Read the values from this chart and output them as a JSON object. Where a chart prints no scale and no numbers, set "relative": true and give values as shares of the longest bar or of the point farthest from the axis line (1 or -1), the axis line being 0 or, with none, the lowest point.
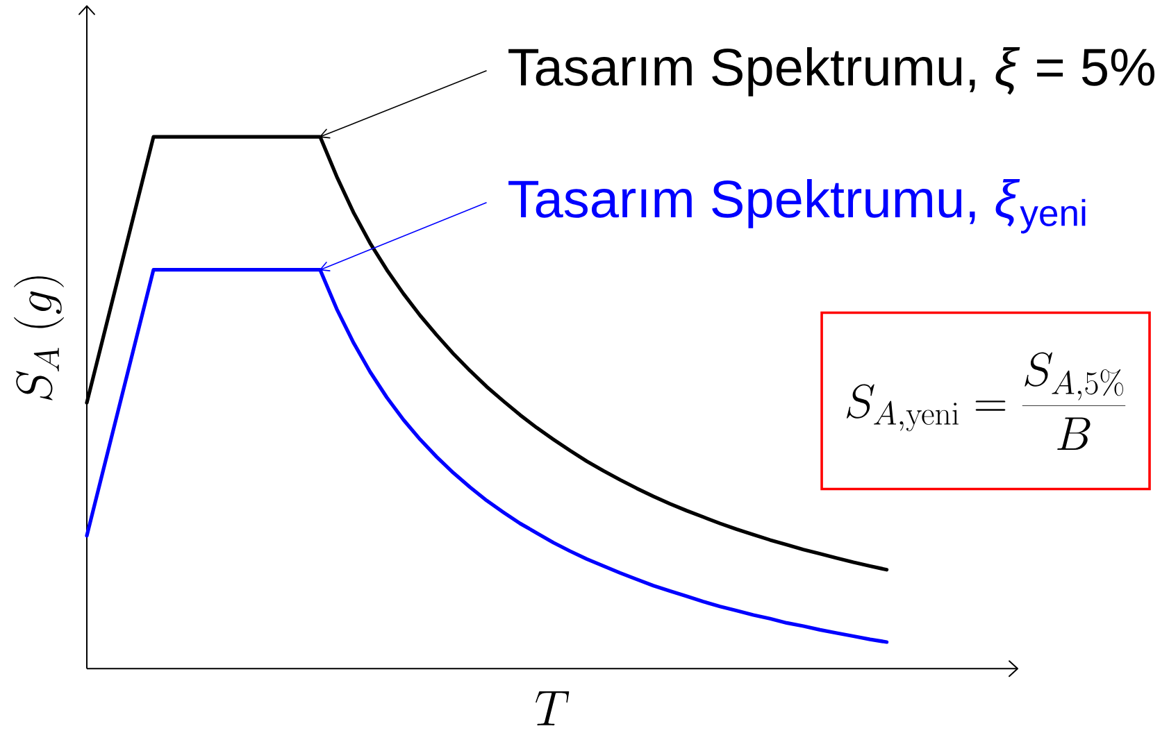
{
  "chart_data": {
    "type": "line",
    "relative": true,
    "legend": "top right",
    "xlabel": "T",
    "ylabel": "S_A\\ (g)",
    "categories": [
      null,
      null,
      null,
      null,
      null,
      null,
      null,
      null,
      null,
      null,
      null,
      null,
      null,
      null,
      null,
      null,
      null,
      null,
      null,
      null,
      null,
      null,
      null,
      null,
      null,
      null,
      null,
      null,
      null,
      null,
      null,
      null,
      null,
      null,
      null,
      null,
      null,
      null,
      null,
      null,
      null,
      null,
      null,
      null,
      null,
      null,
      null,
      null,
      null
    ],
    "series": [
      {
        "name": "Tasarım Spektrumu, *ξ* = 5%",
        "color": "#000000",
        "values": [
          0.5,
          0.625,
          0.75,
          0.875,
          1,
          1,
          1,
          1,
          1,
          1,
          1,
          1,
          1,
          1,
          1,
          0.925,
          0.858,
          0.8,
          0.75,
          0.705,
          0.664,
          0.627,
          0.592,
          0.56,
          0.53,
          0.503,
          0.477,
          0.453,
          0.431,
          0.41,
          0.39,
          0.372,
          0.355,
          0.339,
          0.324,
          0.31,
          0.297,
          0.285,
          0.273,
          0.262,
          0.252,
          0.242,
          0.233,
          0.224,
          0.216,
          0.208,
          0.2,
          0.193,
          0.186
        ]
      },
      {
        "name": "Tasarım Spektrumu, *ξ*$_{yeni}$",
        "color": "#0000ff",
        "values": [
          0.25,
          0.375,
          0.5,
          0.625,
          0.75,
          0.75,
          0.75,
          0.75,
          0.75,
          0.75,
          0.75,
          0.75,
          0.75,
          0.75,
          0.75,
          0.676,
          0.613,
          0.558,
          0.51,
          0.468,
          0.431,
          0.398,
          0.368,
          0.341,
          0.316,
          0.294,
          0.273,
          0.255,
          0.237,
          0.221,
          0.206,
          0.193,
          0.18,
          0.168,
          0.156,
          0.146,
          0.136,
          0.126,
          0.117,
          0.109,
          0.101,
          0.094,
          0.086,
          0.08,
          0.073,
          0.067,
          0.061,
          0.055,
          0.05
        ]
      }
    ],
    "annotations": [
      "S_{A,\\mathrm{yeni}} = \\frac{S_{A,5\\%}}{B}"
    ]
  }
}
